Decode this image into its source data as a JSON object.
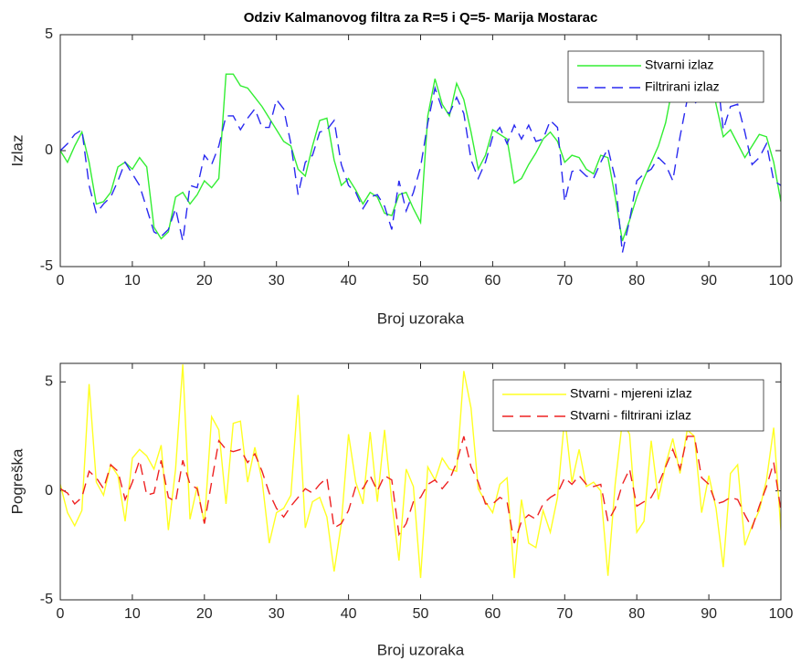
{
  "chart_data": [
    {
      "type": "line",
      "title": "Odziv Kalmanovog filtra za R=5 i Q=5- Marija Mostarac",
      "xlabel": "Broj uzoraka",
      "ylabel": "Izlaz",
      "x": [
        0,
        1,
        2,
        3,
        4,
        5,
        6,
        7,
        8,
        9,
        10,
        11,
        12,
        13,
        14,
        15,
        16,
        17,
        18,
        19,
        20,
        21,
        22,
        23,
        24,
        25,
        26,
        27,
        28,
        29,
        30,
        31,
        32,
        33,
        34,
        35,
        36,
        37,
        38,
        39,
        40,
        41,
        42,
        43,
        44,
        45,
        46,
        47,
        48,
        49,
        50,
        51,
        52,
        53,
        54,
        55,
        56,
        57,
        58,
        59,
        60,
        61,
        62,
        63,
        64,
        65,
        66,
        67,
        68,
        69,
        70,
        71,
        72,
        73,
        74,
        75,
        76,
        77,
        78,
        79,
        80,
        81,
        82,
        83,
        84,
        85,
        86,
        87,
        88,
        89,
        90,
        91,
        92,
        93,
        94,
        95,
        96,
        97,
        98,
        99,
        100
      ],
      "series": [
        {
          "name": "Stvarni izlaz",
          "color": "#33ee33",
          "style": "solid",
          "values": [
            0,
            -0.5,
            0.2,
            0.8,
            -0.5,
            -2.3,
            -2.2,
            -1.8,
            -0.7,
            -0.5,
            -0.8,
            -0.3,
            -0.7,
            -3.3,
            -3.8,
            -3.5,
            -2.0,
            -1.8,
            -2.3,
            -1.9,
            -1.3,
            -1.6,
            -1.2,
            3.3,
            3.3,
            2.8,
            2.7,
            2.3,
            1.9,
            1.4,
            0.9,
            0.4,
            0.2,
            -0.8,
            -1.1,
            0.2,
            1.3,
            1.4,
            -0.4,
            -1.5,
            -1.2,
            -1.7,
            -2.3,
            -1.8,
            -2.0,
            -2.7,
            -2.8,
            -1.9,
            -1.8,
            -2.5,
            -3.1,
            1.5,
            3.1,
            2.0,
            1.5,
            2.9,
            2.2,
            0.8,
            -0.8,
            -0.2,
            0.9,
            0.7,
            0.5,
            -1.4,
            -1.2,
            -0.6,
            -0.1,
            0.5,
            0.8,
            0.4,
            -0.5,
            -0.2,
            -0.3,
            -0.8,
            -1.0,
            -0.2,
            -0.3,
            -2.0,
            -3.9,
            -3.0,
            -2.0,
            -1.2,
            -0.5,
            0.2,
            1.2,
            2.8,
            3.3,
            3.2,
            2.8,
            3.2,
            3.6,
            2.0,
            0.6,
            0.9,
            0.3,
            -0.3,
            0.2,
            0.7,
            0.6,
            -0.5,
            -2.2
          ]
        },
        {
          "name": "Filtrirani izlaz",
          "color": "#2a2af0",
          "style": "dashed",
          "values": [
            0,
            0.3,
            0.7,
            0.9,
            -1.5,
            -2.7,
            -2.3,
            -2.0,
            -1.3,
            -0.5,
            -1.0,
            -1.5,
            -2.5,
            -3.5,
            -3.7,
            -3.4,
            -2.5,
            -3.9,
            -1.5,
            -1.6,
            -0.2,
            -0.6,
            0.2,
            1.5,
            1.5,
            0.9,
            1.4,
            1.8,
            1.0,
            1.0,
            2.2,
            1.8,
            0.3,
            -1.9,
            -0.5,
            -0.2,
            0.8,
            0.9,
            1.3,
            -0.6,
            -1.5,
            -1.8,
            -2.5,
            -2.0,
            -1.9,
            -2.4,
            -3.4,
            -1.3,
            -2.6,
            -1.8,
            -0.7,
            1.2,
            2.7,
            1.8,
            1.6,
            2.3,
            1.6,
            -0.4,
            -1.2,
            -0.5,
            0.6,
            1.0,
            0.3,
            1.1,
            0.5,
            1.1,
            0.4,
            0.5,
            1.3,
            1.0,
            -2.2,
            -0.9,
            -0.8,
            -1.1,
            -1.2,
            -0.5,
            0.1,
            -1.2,
            -4.4,
            -3.0,
            -1.3,
            -1.0,
            -0.8,
            -0.3,
            -0.6,
            -1.3,
            0.6,
            2.2,
            2.0,
            2.4,
            2.3,
            3.7,
            0.9,
            1.9,
            2.0,
            0.8,
            -0.6,
            -0.3,
            0.3,
            -1.3,
            -1.5
          ]
        }
      ],
      "xlim": [
        0,
        100
      ],
      "xticks": [
        0,
        10,
        20,
        30,
        40,
        50,
        60,
        70,
        80,
        90,
        100
      ],
      "ylim": [
        -5,
        5
      ],
      "yticks": [
        -5,
        0,
        5
      ],
      "grid": false,
      "legend": "northeast"
    },
    {
      "type": "line",
      "xlabel": "Broj uzoraka",
      "ylabel": "Pogreška",
      "x": [
        0,
        1,
        2,
        3,
        4,
        5,
        6,
        7,
        8,
        9,
        10,
        11,
        12,
        13,
        14,
        15,
        16,
        17,
        18,
        19,
        20,
        21,
        22,
        23,
        24,
        25,
        26,
        27,
        28,
        29,
        30,
        31,
        32,
        33,
        34,
        35,
        36,
        37,
        38,
        39,
        40,
        41,
        42,
        43,
        44,
        45,
        46,
        47,
        48,
        49,
        50,
        51,
        52,
        53,
        54,
        55,
        56,
        57,
        58,
        59,
        60,
        61,
        62,
        63,
        64,
        65,
        66,
        67,
        68,
        69,
        70,
        71,
        72,
        73,
        74,
        75,
        76,
        77,
        78,
        79,
        80,
        81,
        82,
        83,
        84,
        85,
        86,
        87,
        88,
        89,
        90,
        91,
        92,
        93,
        94,
        95,
        96,
        97,
        98,
        99,
        100
      ],
      "series": [
        {
          "name": "Stvarni - mjereni izlaz",
          "color": "#ffff22",
          "style": "solid",
          "values": [
            0.3,
            -1.0,
            -1.6,
            -0.9,
            4.9,
            0.4,
            -0.2,
            1.2,
            0.7,
            -1.4,
            1.5,
            1.9,
            1.6,
            1.0,
            2.1,
            -1.8,
            1.0,
            5.8,
            -1.3,
            0.2,
            -1.5,
            3.4,
            2.8,
            -0.6,
            3.1,
            3.2,
            0.4,
            2.0,
            0.5,
            -2.4,
            -1.0,
            -0.8,
            -0.2,
            4.4,
            -1.7,
            -0.5,
            -0.3,
            -1.2,
            -3.7,
            -1.5,
            2.6,
            0.4,
            -0.6,
            2.7,
            -0.5,
            2.8,
            -0.5,
            -3.2,
            1.0,
            0.2,
            -4.0,
            1.1,
            0.5,
            1.5,
            1.0,
            0.9,
            5.5,
            3.8,
            0.1,
            -0.5,
            -1.0,
            0.3,
            0.6,
            -4.0,
            -0.4,
            -2.4,
            -2.6,
            -0.9,
            -1.9,
            -0.3,
            3.4,
            0.4,
            1.9,
            0.2,
            0.4,
            0.0,
            -3.9,
            0.3,
            3.2,
            2.6,
            -1.9,
            -1.4,
            2.3,
            -0.4,
            1.2,
            2.4,
            0.8,
            2.8,
            2.5,
            -1.0,
            0.7,
            -0.8,
            -3.5,
            0.8,
            1.2,
            -2.5,
            -1.6,
            -0.9,
            0.5,
            2.9,
            -1.8
          ]
        },
        {
          "name": "Stvarni - filtrirani izlaz",
          "color": "#ee2222",
          "style": "dashed",
          "values": [
            0.1,
            -0.1,
            -0.6,
            -0.3,
            0.9,
            0.6,
            0.1,
            1.2,
            0.9,
            -0.4,
            0.4,
            1.4,
            -0.2,
            -0.1,
            1.4,
            -0.3,
            -0.5,
            1.4,
            0.3,
            0.1,
            -1.5,
            0.4,
            2.3,
            1.9,
            1.8,
            1.9,
            1.3,
            1.7,
            0.9,
            -0.1,
            -0.8,
            -1.2,
            -0.7,
            -0.3,
            0.1,
            -0.1,
            0.3,
            0.6,
            -1.7,
            -1.5,
            -0.9,
            0.2,
            0.1,
            0.7,
            0.0,
            0.7,
            0.5,
            -2.0,
            -1.5,
            -0.5,
            -0.3,
            0.3,
            0.5,
            0.1,
            0.5,
            1.3,
            2.5,
            1.1,
            0.4,
            -0.6,
            -0.6,
            -0.3,
            -0.5,
            -2.4,
            -1.4,
            -1.1,
            -1.3,
            -0.6,
            -0.3,
            -0.1,
            0.6,
            0.3,
            0.7,
            0.3,
            0.2,
            0.3,
            -1.4,
            -0.8,
            0.3,
            1.0,
            -0.7,
            -0.5,
            -0.3,
            0.3,
            1.1,
            1.9,
            1.0,
            2.5,
            2.5,
            0.6,
            0.3,
            -0.6,
            -0.5,
            -0.3,
            -0.4,
            -1.1,
            -1.7,
            -0.7,
            0.2,
            1.3,
            -0.9
          ]
        }
      ],
      "xlim": [
        0,
        100
      ],
      "xticks": [
        0,
        10,
        20,
        30,
        40,
        50,
        60,
        70,
        80,
        90,
        100
      ],
      "ylim": [
        -5,
        5.85
      ],
      "yticks": [
        -5,
        0,
        5
      ],
      "grid": false,
      "legend": "northeast"
    }
  ]
}
